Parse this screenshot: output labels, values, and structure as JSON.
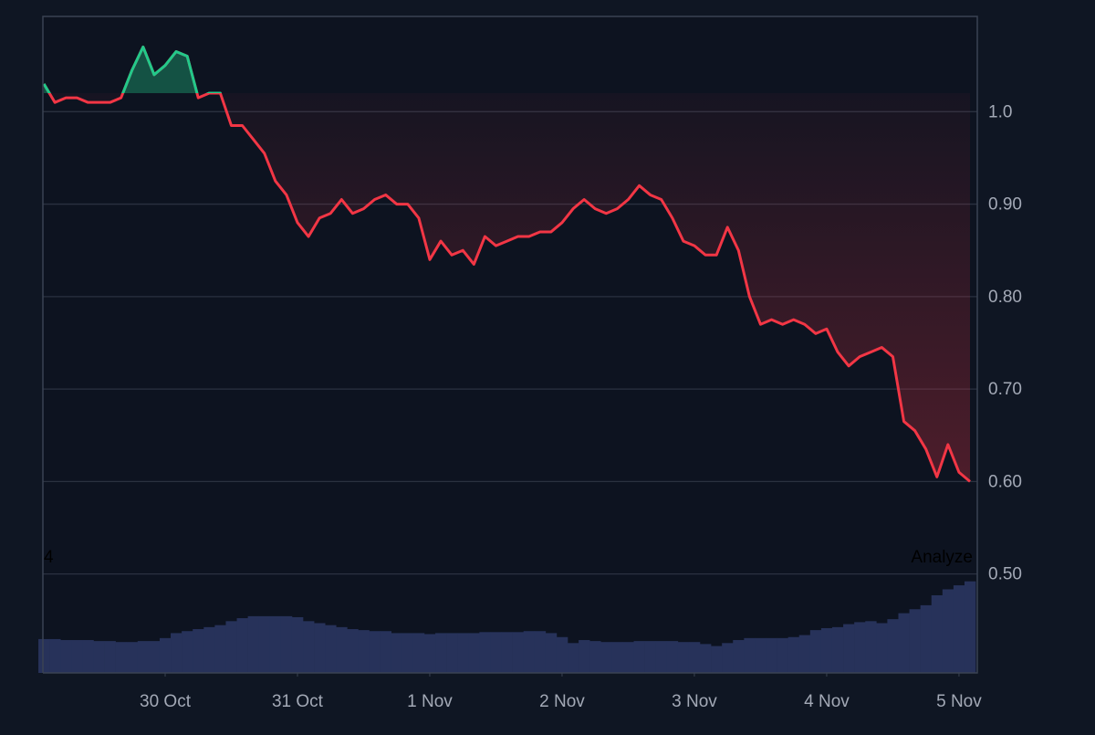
{
  "chart_data": {
    "type": "baseline",
    "x": [
      1,
      2,
      3,
      4,
      5,
      6,
      7,
      8,
      9,
      10,
      11,
      12,
      13,
      14,
      15,
      16,
      17,
      18,
      19,
      20,
      21,
      22,
      23,
      24,
      25,
      26,
      27,
      28,
      29,
      30,
      31,
      32,
      33,
      34,
      35,
      36,
      37,
      38,
      39,
      40,
      41,
      42,
      43,
      44,
      45,
      46,
      47,
      48,
      49,
      50,
      51,
      52,
      53,
      54,
      55,
      56,
      57,
      58,
      59,
      60,
      61,
      62,
      63,
      64,
      65,
      66,
      67,
      68,
      69,
      70,
      71,
      72,
      73,
      74,
      75,
      76,
      77,
      78,
      79,
      80,
      81,
      82,
      83,
      84,
      85
    ],
    "xlim": [
      0.91,
      85.66
    ],
    "xticks": [
      {
        "value": 12,
        "label": "30 Oct"
      },
      {
        "value": 24,
        "label": "31 Oct"
      },
      {
        "value": 36,
        "label": "1 Nov"
      },
      {
        "value": 48,
        "label": "2 Nov"
      },
      {
        "value": 60,
        "label": "3 Nov"
      },
      {
        "value": 72,
        "label": "4 Nov"
      },
      {
        "value": 84,
        "label": "5 Nov"
      }
    ],
    "ylim": [
      0.393,
      1.103
    ],
    "yticks": [
      {
        "value": 1,
        "label": "1.0"
      },
      {
        "value": 0.9,
        "label": "0.90"
      },
      {
        "value": 0.8,
        "label": "0.80"
      },
      {
        "value": 0.7,
        "label": "0.70"
      },
      {
        "value": 0.6,
        "label": "0.60"
      },
      {
        "value": 0.5,
        "label": "0.50"
      }
    ],
    "y2lim": [
      0,
      100
    ],
    "baseline": 1.02,
    "grid": true,
    "annotations": [
      "4",
      "Analyze"
    ],
    "series": [
      {
        "color": "#f23645",
        "color_above": "#22c98a",
        "values": [
          1.03,
          1.01,
          1.015,
          1.015,
          1.01,
          1.01,
          1.01,
          1.015,
          1.045,
          1.07,
          1.04,
          1.05,
          1.065,
          1.06,
          1.015,
          1.02,
          1.02,
          0.985,
          0.985,
          0.97,
          0.955,
          0.925,
          0.91,
          0.88,
          0.865,
          0.885,
          0.89,
          0.905,
          0.89,
          0.895,
          0.905,
          0.91,
          0.9,
          0.9,
          0.885,
          0.84,
          0.86,
          0.845,
          0.85,
          0.835,
          0.865,
          0.855,
          0.86,
          0.865,
          0.865,
          0.87,
          0.87,
          0.88,
          0.895,
          0.905,
          0.895,
          0.89,
          0.895,
          0.905,
          0.92,
          0.91,
          0.905,
          0.885,
          0.86,
          0.855,
          0.845,
          0.845,
          0.875,
          0.85,
          0.8,
          0.77,
          0.775,
          0.77,
          0.775,
          0.77,
          0.76,
          0.765,
          0.74,
          0.725,
          0.735,
          0.74,
          0.745,
          0.735,
          0.665,
          0.655,
          0.635,
          0.605,
          0.64,
          0.61,
          0.6
        ]
      },
      {
        "type": "histogram",
        "axis": "y2",
        "color": "#27325a",
        "values": [
          34,
          34,
          33,
          33,
          33,
          32,
          32,
          31,
          31,
          32,
          32,
          35,
          40,
          42,
          44,
          46,
          48,
          52,
          55,
          57,
          57,
          57,
          57,
          56,
          52,
          50,
          48,
          46,
          44,
          43,
          42,
          42,
          40,
          40,
          40,
          39,
          40,
          40,
          40,
          40,
          41,
          41,
          41,
          41,
          42,
          42,
          40,
          36,
          30,
          33,
          32,
          31,
          31,
          31,
          32,
          32,
          32,
          32,
          31,
          31,
          29,
          27,
          30,
          33,
          35,
          35,
          35,
          35,
          36,
          38,
          43,
          45,
          46,
          49,
          51,
          52,
          50,
          54,
          60,
          64,
          68,
          78,
          84,
          88,
          92
        ]
      }
    ]
  }
}
